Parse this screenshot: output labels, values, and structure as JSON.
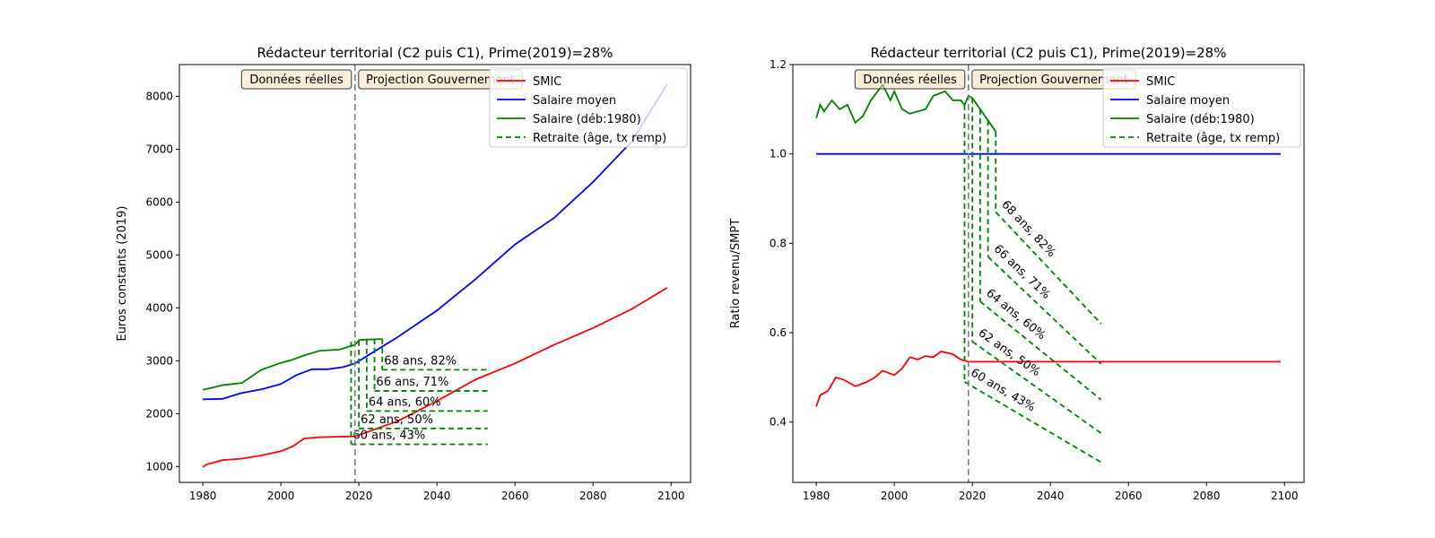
{
  "chart_data": [
    {
      "type": "line",
      "title": "Rédacteur territorial (C2 puis C1), Prime(2019)=28%",
      "xlabel": "",
      "ylabel": "Euros constants (2019)",
      "xlim": [
        1974,
        2105
      ],
      "ylim": [
        700,
        8600
      ],
      "xticks": [
        1980,
        2000,
        2020,
        2040,
        2060,
        2080,
        2100
      ],
      "yticks": [
        1000,
        2000,
        3000,
        4000,
        5000,
        6000,
        7000,
        8000
      ],
      "ytick_labels": [
        "1000",
        "2000",
        "3000",
        "4000",
        "5000",
        "6000",
        "7000",
        "8000"
      ],
      "vline_x": 2019,
      "boxes": {
        "left": "Données réelles",
        "right": "Projection Gouvernement"
      },
      "legend_position": "top-right",
      "legend": [
        {
          "label": "SMIC",
          "color": "#ff0000",
          "style": "solid"
        },
        {
          "label": "Salaire moyen",
          "color": "#0000ff",
          "style": "solid"
        },
        {
          "label": "Salaire (déb:1980)",
          "color": "#008000",
          "style": "solid"
        },
        {
          "label": "Retraite (âge, tx remp)",
          "color": "#008000",
          "style": "dashed"
        }
      ],
      "series": [
        {
          "name": "SMIC",
          "color": "#ff0000",
          "points": [
            [
              1980,
              990
            ],
            [
              1981,
              1040
            ],
            [
              1983,
              1080
            ],
            [
              1985,
              1120
            ],
            [
              1990,
              1150
            ],
            [
              1995,
              1210
            ],
            [
              2000,
              1290
            ],
            [
              2003,
              1380
            ],
            [
              2006,
              1530
            ],
            [
              2010,
              1555
            ],
            [
              2015,
              1565
            ],
            [
              2019,
              1570
            ],
            [
              2030,
              1860
            ],
            [
              2040,
              2240
            ],
            [
              2050,
              2650
            ],
            [
              2060,
              2950
            ],
            [
              2070,
              3300
            ],
            [
              2080,
              3620
            ],
            [
              2090,
              3980
            ],
            [
              2099,
              4380
            ]
          ]
        },
        {
          "name": "Salaire moyen",
          "color": "#0000ff",
          "points": [
            [
              1980,
              2270
            ],
            [
              1985,
              2280
            ],
            [
              1990,
              2390
            ],
            [
              1995,
              2460
            ],
            [
              2000,
              2560
            ],
            [
              2004,
              2730
            ],
            [
              2008,
              2840
            ],
            [
              2012,
              2840
            ],
            [
              2016,
              2880
            ],
            [
              2019,
              2950
            ],
            [
              2030,
              3450
            ],
            [
              2040,
              3950
            ],
            [
              2050,
              4550
            ],
            [
              2060,
              5200
            ],
            [
              2070,
              5700
            ],
            [
              2080,
              6380
            ],
            [
              2090,
              7150
            ],
            [
              2099,
              8230
            ]
          ]
        },
        {
          "name": "Salaire (déb:1980)",
          "color": "#008000",
          "points": [
            [
              1980,
              2450
            ],
            [
              1983,
              2500
            ],
            [
              1985,
              2540
            ],
            [
              1990,
              2580
            ],
            [
              1995,
              2830
            ],
            [
              2000,
              2960
            ],
            [
              2003,
              3020
            ],
            [
              2006,
              3100
            ],
            [
              2010,
              3190
            ],
            [
              2015,
              3210
            ],
            [
              2018,
              3280
            ],
            [
              2019,
              3300
            ],
            [
              2020,
              3390
            ],
            [
              2022,
              3400
            ],
            [
              2026,
              3410
            ]
          ]
        }
      ],
      "retirement": [
        {
          "label": "60 ans, 43%",
          "start": 2018,
          "value": 1420,
          "end": 2053,
          "top": 3360
        },
        {
          "label": "62 ans, 50%",
          "start": 2020,
          "value": 1720,
          "end": 2053,
          "top": 3380
        },
        {
          "label": "64 ans, 60%",
          "start": 2022,
          "value": 2050,
          "end": 2053,
          "top": 3400
        },
        {
          "label": "66 ans, 71%",
          "start": 2024,
          "value": 2430,
          "end": 2053,
          "top": 3410
        },
        {
          "label": "68 ans, 82%",
          "start": 2026,
          "value": 2830,
          "end": 2053,
          "top": 3415
        }
      ]
    },
    {
      "type": "line",
      "title": "Rédacteur territorial (C2 puis C1), Prime(2019)=28%",
      "xlabel": "",
      "ylabel": "Ratio revenu/SMPT",
      "xlim": [
        1974,
        2105
      ],
      "ylim": [
        0.265,
        1.2
      ],
      "xticks": [
        1980,
        2000,
        2020,
        2040,
        2060,
        2080,
        2100
      ],
      "yticks": [
        0.4,
        0.6,
        0.8,
        1.0,
        1.2
      ],
      "ytick_labels": [
        "0.4",
        "0.6",
        "0.8",
        "1.0",
        "1.2"
      ],
      "vline_x": 2019,
      "boxes": {
        "left": "Données réelles",
        "right": "Projection Gouvernement"
      },
      "legend_position": "top-right",
      "legend": [
        {
          "label": "SMIC",
          "color": "#ff0000",
          "style": "solid"
        },
        {
          "label": "Salaire moyen",
          "color": "#0000ff",
          "style": "solid"
        },
        {
          "label": "Salaire (déb:1980)",
          "color": "#008000",
          "style": "solid"
        },
        {
          "label": "Retraite (âge, tx remp)",
          "color": "#008000",
          "style": "dashed"
        }
      ],
      "series": [
        {
          "name": "SMIC",
          "color": "#ff0000",
          "points": [
            [
              1980,
              0.435
            ],
            [
              1981,
              0.46
            ],
            [
              1983,
              0.47
            ],
            [
              1985,
              0.5
            ],
            [
              1987,
              0.495
            ],
            [
              1990,
              0.48
            ],
            [
              1993,
              0.49
            ],
            [
              1995,
              0.5
            ],
            [
              1997,
              0.515
            ],
            [
              2000,
              0.505
            ],
            [
              2002,
              0.52
            ],
            [
              2004,
              0.545
            ],
            [
              2006,
              0.54
            ],
            [
              2008,
              0.548
            ],
            [
              2010,
              0.545
            ],
            [
              2012,
              0.558
            ],
            [
              2015,
              0.552
            ],
            [
              2017,
              0.54
            ],
            [
              2019,
              0.535
            ],
            [
              2099,
              0.535
            ]
          ]
        },
        {
          "name": "Salaire moyen",
          "color": "#0000ff",
          "points": [
            [
              1980,
              1.0
            ],
            [
              2099,
              1.0
            ]
          ]
        },
        {
          "name": "Salaire (déb:1980)",
          "color": "#008000",
          "points": [
            [
              1980,
              1.08
            ],
            [
              1981,
              1.11
            ],
            [
              1982,
              1.095
            ],
            [
              1984,
              1.12
            ],
            [
              1986,
              1.1
            ],
            [
              1988,
              1.11
            ],
            [
              1990,
              1.07
            ],
            [
              1992,
              1.085
            ],
            [
              1994,
              1.12
            ],
            [
              1997,
              1.155
            ],
            [
              1999,
              1.12
            ],
            [
              2000,
              1.14
            ],
            [
              2002,
              1.1
            ],
            [
              2004,
              1.09
            ],
            [
              2006,
              1.095
            ],
            [
              2008,
              1.1
            ],
            [
              2010,
              1.13
            ],
            [
              2013,
              1.14
            ],
            [
              2015,
              1.12
            ],
            [
              2017,
              1.12
            ],
            [
              2018,
              1.11
            ],
            [
              2019,
              1.13
            ],
            [
              2020,
              1.125
            ],
            [
              2022,
              1.1
            ],
            [
              2024,
              1.075
            ],
            [
              2026,
              1.05
            ]
          ]
        }
      ],
      "retirement": [
        {
          "label": "60 ans, 43%",
          "start": 2018,
          "value": 0.49,
          "endval": 0.31,
          "end": 2053,
          "top": 1.11
        },
        {
          "label": "62 ans, 50%",
          "start": 2020,
          "value": 0.58,
          "endval": 0.375,
          "end": 2053,
          "top": 1.125
        },
        {
          "label": "64 ans, 60%",
          "start": 2022,
          "value": 0.67,
          "endval": 0.45,
          "end": 2053,
          "top": 1.1
        },
        {
          "label": "66 ans, 71%",
          "start": 2024,
          "value": 0.77,
          "endval": 0.53,
          "end": 2053,
          "top": 1.075
        },
        {
          "label": "68 ans, 82%",
          "start": 2026,
          "value": 0.87,
          "endval": 0.62,
          "end": 2053,
          "top": 1.05
        }
      ]
    }
  ]
}
